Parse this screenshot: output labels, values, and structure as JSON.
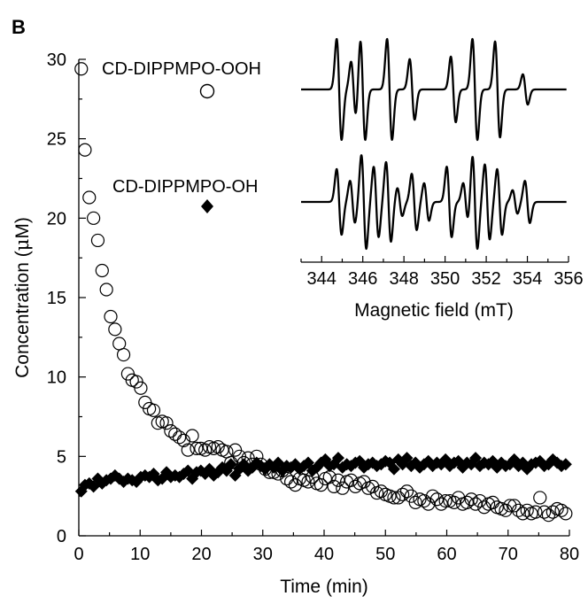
{
  "panel_label": "B",
  "chart_data": [
    {
      "type": "scatter",
      "xlabel": "Time (min)",
      "ylabel_prefix": "Concentration (",
      "ylabel_mu": "μ",
      "ylabel_suffix": "M)",
      "xlim": [
        0,
        80
      ],
      "ylim": [
        0,
        30
      ],
      "xticks": [
        "0",
        "10",
        "20",
        "30",
        "40",
        "50",
        "60",
        "70",
        "80"
      ],
      "yticks": [
        "0",
        "5",
        "10",
        "15",
        "20",
        "25",
        "30"
      ],
      "grid": false,
      "legend_position": "top-center",
      "series": [
        {
          "name": "CD-DIPPMPO-OOH",
          "marker": "open-circle",
          "x": [
            0.4,
            1.0,
            1.7,
            2.4,
            3.1,
            3.8,
            4.5,
            5.2,
            5.9,
            6.6,
            7.3,
            8.0,
            8.7,
            9.4,
            10.1,
            10.8,
            11.5,
            12.2,
            12.9,
            13.6,
            14.3,
            15.0,
            15.7,
            16.4,
            17.1,
            17.8,
            18.5,
            19.2,
            19.9,
            20.6,
            21.3,
            22.0,
            22.7,
            23.4,
            24.1,
            24.8,
            25.5,
            26.2,
            26.9,
            27.6,
            28.3,
            29.0,
            29.7,
            30.4,
            31.1,
            31.8,
            32.5,
            33.2,
            33.9,
            34.6,
            35.3,
            36.0,
            36.7,
            37.4,
            38.1,
            38.8,
            39.5,
            40.2,
            40.9,
            41.6,
            42.3,
            43.0,
            43.7,
            44.4,
            45.1,
            45.8,
            46.5,
            47.2,
            47.9,
            48.6,
            49.3,
            50.0,
            50.7,
            51.4,
            52.1,
            52.8,
            53.5,
            54.2,
            54.9,
            55.6,
            56.3,
            57.0,
            57.7,
            58.4,
            59.1,
            59.8,
            60.5,
            61.2,
            61.9,
            62.6,
            63.3,
            64.0,
            64.7,
            65.4,
            66.1,
            66.8,
            67.5,
            68.2,
            68.9,
            69.6,
            70.3,
            71.0,
            71.7,
            72.4,
            73.1,
            73.8,
            74.5,
            75.2,
            75.9,
            76.6,
            77.3,
            78.0,
            78.7,
            79.4
          ],
          "y": [
            29.4,
            24.3,
            21.3,
            20.0,
            18.6,
            16.7,
            15.5,
            13.8,
            13.0,
            12.1,
            11.4,
            10.2,
            9.8,
            9.7,
            9.3,
            8.4,
            8.0,
            7.9,
            7.1,
            7.2,
            7.1,
            6.6,
            6.4,
            6.2,
            6.0,
            5.4,
            6.3,
            5.5,
            5.5,
            5.4,
            5.6,
            5.5,
            5.6,
            5.4,
            5.3,
            4.6,
            5.4,
            5.0,
            4.6,
            4.9,
            4.5,
            5.0,
            4.5,
            4.2,
            4.0,
            4.0,
            3.9,
            4.1,
            3.6,
            3.4,
            3.2,
            3.6,
            3.5,
            3.4,
            3.7,
            3.3,
            3.2,
            3.6,
            3.7,
            3.1,
            3.5,
            3.0,
            3.4,
            3.5,
            3.1,
            3.3,
            3.4,
            3.0,
            3.1,
            2.7,
            2.8,
            2.6,
            2.5,
            2.4,
            2.4,
            2.6,
            2.8,
            2.5,
            2.1,
            2.3,
            2.2,
            2.0,
            2.5,
            2.3,
            2.0,
            2.2,
            2.2,
            2.1,
            2.4,
            2.0,
            2.1,
            2.3,
            2.0,
            2.2,
            1.8,
            2.0,
            2.1,
            1.8,
            1.7,
            1.6,
            1.9,
            1.9,
            1.6,
            1.4,
            1.6,
            1.4,
            1.5,
            2.4,
            1.5,
            1.3,
            1.5,
            1.7,
            1.6,
            1.4
          ]
        },
        {
          "name": "CD-DIPPMPO-OH",
          "marker": "filled-diamond",
          "x": [
            0.4,
            1.0,
            1.7,
            2.4,
            3.1,
            3.8,
            4.5,
            5.2,
            5.9,
            6.6,
            7.3,
            8.0,
            8.7,
            9.4,
            10.1,
            10.8,
            11.5,
            12.2,
            12.9,
            13.6,
            14.3,
            15.0,
            15.7,
            16.4,
            17.1,
            17.8,
            18.5,
            19.2,
            19.9,
            20.6,
            21.3,
            22.0,
            22.7,
            23.4,
            24.1,
            24.8,
            25.5,
            26.2,
            26.9,
            27.6,
            28.3,
            29.0,
            29.7,
            30.4,
            31.1,
            31.8,
            32.5,
            33.2,
            33.9,
            34.6,
            35.3,
            36.0,
            36.7,
            37.4,
            38.1,
            38.8,
            39.5,
            40.2,
            40.9,
            41.6,
            42.3,
            43.0,
            43.7,
            44.4,
            45.1,
            45.8,
            46.5,
            47.2,
            47.9,
            48.6,
            49.3,
            50.0,
            50.7,
            51.4,
            52.1,
            52.8,
            53.5,
            54.2,
            54.9,
            55.6,
            56.3,
            57.0,
            57.7,
            58.4,
            59.1,
            59.8,
            60.5,
            61.2,
            61.9,
            62.6,
            63.3,
            64.0,
            64.7,
            65.4,
            66.1,
            66.8,
            67.5,
            68.2,
            68.9,
            69.6,
            70.3,
            71.0,
            71.7,
            72.4,
            73.1,
            73.8,
            74.5,
            75.2,
            75.9,
            76.6,
            77.3,
            78.0,
            78.7,
            79.4
          ],
          "y": [
            2.8,
            3.2,
            3.3,
            3.1,
            3.6,
            3.3,
            3.5,
            3.6,
            3.8,
            3.6,
            3.4,
            3.6,
            3.5,
            3.4,
            3.7,
            3.8,
            3.7,
            3.9,
            3.5,
            3.6,
            4.0,
            3.7,
            3.8,
            3.7,
            3.9,
            4.1,
            3.6,
            4.0,
            4.1,
            3.9,
            4.2,
            3.8,
            4.0,
            4.3,
            4.1,
            4.5,
            3.8,
            4.2,
            4.5,
            4.1,
            4.3,
            4.6,
            4.4,
            4.2,
            4.5,
            4.3,
            4.6,
            4.1,
            4.4,
            4.3,
            4.5,
            4.2,
            4.4,
            4.6,
            4.1,
            4.3,
            4.6,
            4.8,
            4.4,
            4.5,
            4.9,
            4.3,
            4.5,
            4.4,
            4.6,
            4.7,
            4.3,
            4.5,
            4.6,
            4.4,
            4.5,
            4.7,
            4.6,
            4.2,
            4.8,
            4.5,
            4.9,
            4.4,
            4.6,
            4.3,
            4.5,
            4.7,
            4.4,
            4.6,
            4.5,
            4.8,
            4.4,
            4.6,
            4.7,
            4.3,
            4.6,
            4.5,
            4.9,
            4.4,
            4.6,
            4.5,
            4.7,
            4.3,
            4.6,
            4.4,
            4.5,
            4.8,
            4.4,
            4.6,
            4.2,
            4.5,
            4.6,
            4.7,
            4.4,
            4.5,
            4.8,
            4.6,
            4.4,
            4.5
          ]
        }
      ]
    },
    {
      "type": "line",
      "xlabel": "Magnetic field (mT)",
      "xlim": [
        343,
        356
      ],
      "xticks": [
        "344",
        "346",
        "348",
        "350",
        "352",
        "354",
        "356"
      ],
      "series": [
        {
          "name": "CD-DIPPMPO-OOH",
          "lines": [
            [
              344.85,
              1.0
            ],
            [
              345.55,
              0.55
            ],
            [
              346.0,
              1.0
            ],
            [
              347.3,
              1.0
            ],
            [
              348.4,
              0.6
            ],
            [
              350.4,
              0.65
            ],
            [
              351.45,
              1.0
            ],
            [
              352.55,
              0.95
            ],
            [
              353.9,
              0.3
            ]
          ],
          "width": 0.12
        },
        {
          "name": "CD-DIPPMPO-OH",
          "lines": [
            [
              344.85,
              0.7
            ],
            [
              345.5,
              0.45
            ],
            [
              346.05,
              1.0
            ],
            [
              346.65,
              0.75
            ],
            [
              347.25,
              0.85
            ],
            [
              347.8,
              0.3
            ],
            [
              348.5,
              0.6
            ],
            [
              349.1,
              0.4
            ],
            [
              350.2,
              0.75
            ],
            [
              351.0,
              0.4
            ],
            [
              351.45,
              1.0
            ],
            [
              352.05,
              0.8
            ],
            [
              352.65,
              0.7
            ],
            [
              353.4,
              0.25
            ],
            [
              354.0,
              0.45
            ]
          ],
          "width": 0.12
        }
      ]
    }
  ]
}
